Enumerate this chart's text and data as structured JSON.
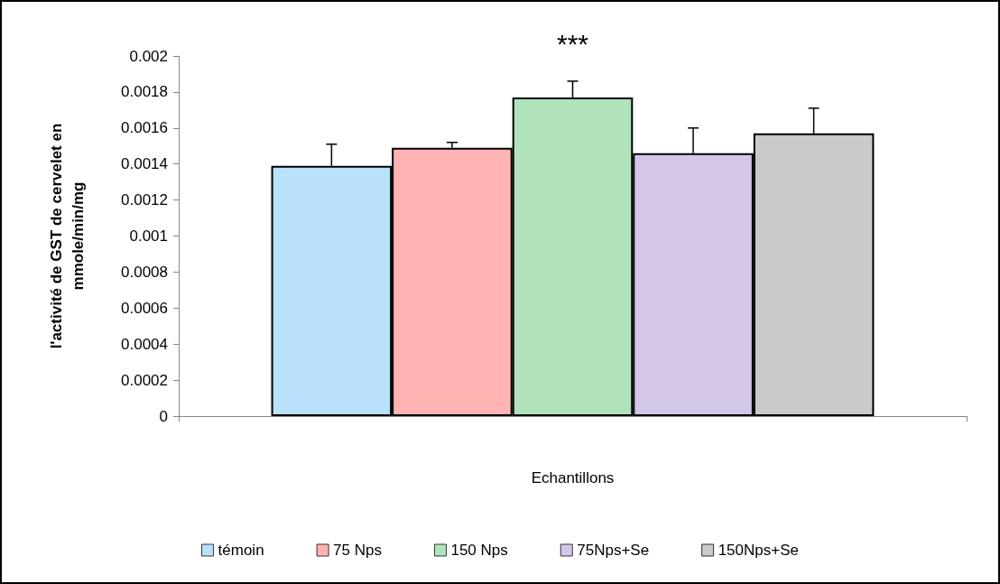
{
  "chart_data": {
    "type": "bar",
    "xlabel": "Echantillons",
    "ylabel": "l'activité de GST de cervelet en mmole/min/mg",
    "categories": [
      null
    ],
    "series": [
      {
        "name": "témoin",
        "color": "#b8e2fb",
        "values": [
          0.00139
        ],
        "errors": [
          [
            0.00139,
            0.00151
          ]
        ]
      },
      {
        "name": "75 Nps",
        "color": "#ffb3b3",
        "values": [
          0.00149
        ],
        "errors": [
          [
            0.00149,
            0.00152
          ]
        ]
      },
      {
        "name": "150 Nps",
        "color": "#b0e3bb",
        "values": [
          0.00177
        ],
        "errors": [
          [
            0.00177,
            0.00186
          ]
        ]
      },
      {
        "name": "75Nps+Se",
        "color": "#d4c6e8",
        "values": [
          0.00146
        ],
        "errors": [
          [
            0.00146,
            0.0016
          ]
        ]
      },
      {
        "name": "150Nps+Se",
        "color": "#cacaca",
        "values": [
          0.00157
        ],
        "errors": [
          [
            0.00157,
            0.00171
          ]
        ]
      }
    ],
    "ylim": [
      0,
      0.002
    ],
    "yticks": [
      0,
      0.0002,
      0.0004,
      0.0006,
      0.0008,
      0.001,
      0.0012,
      0.0014,
      0.0016,
      0.0018,
      0.002
    ],
    "grid": false,
    "legend": "bottom",
    "annotations": [
      "***"
    ]
  }
}
